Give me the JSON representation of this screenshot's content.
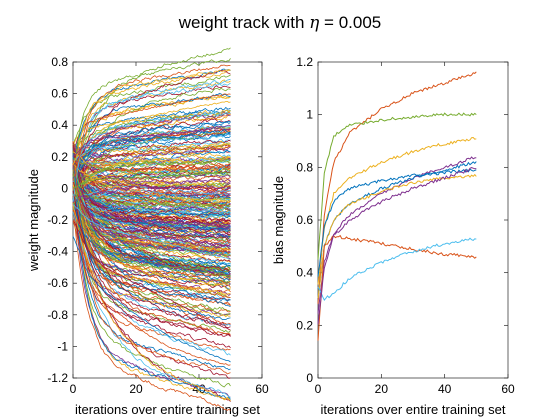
{
  "figure": {
    "title_prefix": "weight track with ",
    "title_symbol": "η",
    "title_suffix": " = 0.005"
  },
  "chart_data": [
    {
      "type": "line",
      "xlabel": "iterations over entire training set",
      "ylabel": "weight magnitude",
      "xlim": [
        0,
        60
      ],
      "ylim": [
        -1.2,
        0.8
      ],
      "xticks": [
        "0",
        "20",
        "40",
        "60"
      ],
      "yticks": [
        "-1.2",
        "-1",
        "-0.8",
        "-0.6",
        "-0.4",
        "-0.2",
        "0",
        "0.2",
        "0.4",
        "0.6",
        "0.8"
      ],
      "grid": false,
      "note": "several hundred weight trajectories from iteration 0 to 50; start near -0.15..0.3 and fan out",
      "series_color_cycle": [
        "#0072bd",
        "#d95319",
        "#edb120",
        "#7e2f8e",
        "#77ac30",
        "#4dbeee",
        "#a2142f"
      ],
      "series_count": 300,
      "series_samples": [
        {
          "x": [
            0,
            5,
            10,
            20,
            30,
            40,
            50
          ],
          "y": [
            0.05,
            0.42,
            0.45,
            0.49,
            0.53,
            0.57,
            0.6
          ]
        },
        {
          "x": [
            0,
            5,
            10,
            20,
            30,
            40,
            50
          ],
          "y": [
            0.15,
            0.38,
            0.4,
            0.44,
            0.48,
            0.52,
            0.55
          ]
        },
        {
          "x": [
            0,
            5,
            10,
            20,
            30,
            40,
            50
          ],
          "y": [
            0.2,
            0.3,
            0.32,
            0.33,
            0.34,
            0.37,
            0.4
          ]
        },
        {
          "x": [
            0,
            5,
            10,
            20,
            30,
            40,
            50
          ],
          "y": [
            0.0,
            0.05,
            0.06,
            0.07,
            0.08,
            0.09,
            0.1
          ]
        },
        {
          "x": [
            0,
            5,
            10,
            20,
            30,
            40,
            50
          ],
          "y": [
            -0.1,
            -0.2,
            -0.25,
            -0.3,
            -0.35,
            -0.4,
            -0.45
          ]
        },
        {
          "x": [
            0,
            5,
            10,
            20,
            30,
            40,
            50
          ],
          "y": [
            -0.2,
            -0.4,
            -0.5,
            -0.6,
            -0.7,
            -0.8,
            -0.9
          ]
        },
        {
          "x": [
            0,
            5,
            10,
            20,
            30,
            40,
            50
          ],
          "y": [
            -0.3,
            -0.55,
            -0.65,
            -0.8,
            -0.93,
            -1.02,
            -1.1
          ]
        },
        {
          "x": [
            0,
            5,
            10,
            20,
            30,
            40,
            50
          ],
          "y": [
            -0.2,
            -0.6,
            -0.72,
            -0.88,
            -1.0,
            -1.07,
            -1.12
          ]
        }
      ]
    },
    {
      "type": "line",
      "xlabel": "iterations over entire training set",
      "ylabel": "bias magnitude",
      "xlim": [
        0,
        60
      ],
      "ylim": [
        0,
        1.2
      ],
      "xticks": [
        "0",
        "20",
        "40",
        "60"
      ],
      "yticks": [
        "0",
        "0.2",
        "0.4",
        "0.6",
        "0.8",
        "1",
        "1.2"
      ],
      "grid": false,
      "series": [
        {
          "color": "#d95319",
          "x": [
            0,
            2,
            5,
            10,
            20,
            30,
            40,
            50
          ],
          "y": [
            0.28,
            0.62,
            0.82,
            0.93,
            1.02,
            1.08,
            1.12,
            1.16
          ]
        },
        {
          "color": "#77ac30",
          "x": [
            0,
            2,
            5,
            10,
            20,
            30,
            40,
            50
          ],
          "y": [
            0.45,
            0.78,
            0.92,
            0.96,
            0.98,
            0.99,
            1.0,
            1.0
          ]
        },
        {
          "color": "#edb120",
          "x": [
            0,
            2,
            5,
            10,
            20,
            30,
            40,
            50
          ],
          "y": [
            0.35,
            0.57,
            0.7,
            0.76,
            0.82,
            0.86,
            0.89,
            0.91
          ]
        },
        {
          "color": "#7e2f8e",
          "x": [
            0,
            2,
            5,
            10,
            20,
            30,
            40,
            50
          ],
          "y": [
            0.25,
            0.44,
            0.55,
            0.62,
            0.7,
            0.76,
            0.8,
            0.84
          ]
        },
        {
          "color": "#0072bd",
          "x": [
            0,
            2,
            5,
            10,
            20,
            30,
            40,
            50
          ],
          "y": [
            0.3,
            0.5,
            0.6,
            0.66,
            0.72,
            0.76,
            0.79,
            0.82
          ]
        },
        {
          "color": "#0072bd",
          "x": [
            0,
            2,
            5,
            10,
            20,
            30,
            40,
            50
          ],
          "y": [
            0.38,
            0.58,
            0.67,
            0.72,
            0.75,
            0.77,
            0.78,
            0.79
          ]
        },
        {
          "color": "#edb120",
          "x": [
            0,
            2,
            5,
            10,
            20,
            30,
            40,
            50
          ],
          "y": [
            0.3,
            0.5,
            0.6,
            0.66,
            0.71,
            0.74,
            0.76,
            0.77
          ]
        },
        {
          "color": "#d95319",
          "x": [
            0,
            2,
            5,
            10,
            20,
            30,
            40,
            50
          ],
          "y": [
            0.14,
            0.5,
            0.54,
            0.53,
            0.51,
            0.49,
            0.47,
            0.46
          ]
        },
        {
          "color": "#4dbeee",
          "x": [
            0,
            2,
            5,
            10,
            20,
            30,
            40,
            50
          ],
          "y": [
            0.35,
            0.3,
            0.32,
            0.38,
            0.44,
            0.48,
            0.51,
            0.53
          ]
        },
        {
          "color": "#7e2f8e",
          "x": [
            0,
            2,
            5,
            10,
            20,
            30,
            40,
            50
          ],
          "y": [
            0.2,
            0.42,
            0.54,
            0.6,
            0.67,
            0.72,
            0.76,
            0.8
          ]
        }
      ]
    }
  ]
}
